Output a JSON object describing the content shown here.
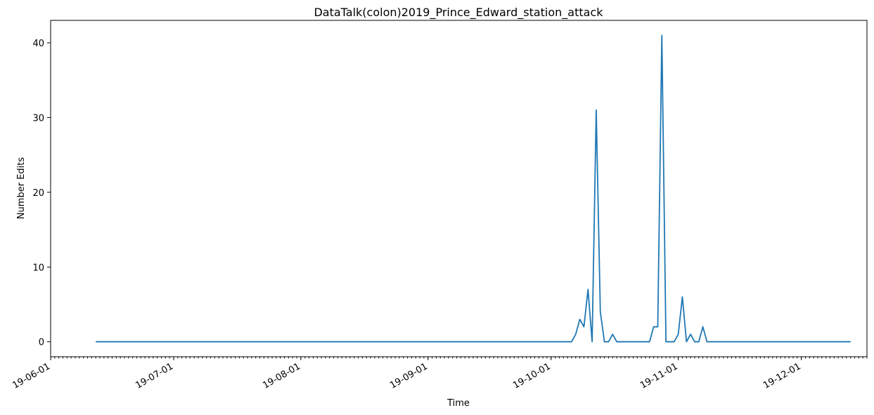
{
  "chart_data": {
    "type": "line",
    "title": "DataTalk(colon)2019_Prince_Edward_station_attack",
    "xlabel": "Time",
    "ylabel": "Number Edits",
    "x_axis_type": "date",
    "xlim": [
      "2019-06-01",
      "2019-12-17"
    ],
    "ylim": [
      -2,
      43
    ],
    "x_ticks": [
      {
        "date": "2019-06-01",
        "label": "19-06-01"
      },
      {
        "date": "2019-07-01",
        "label": "19-07-01"
      },
      {
        "date": "2019-08-01",
        "label": "19-08-01"
      },
      {
        "date": "2019-09-01",
        "label": "19-09-01"
      },
      {
        "date": "2019-10-01",
        "label": "19-10-01"
      },
      {
        "date": "2019-11-01",
        "label": "19-11-01"
      },
      {
        "date": "2019-12-01",
        "label": "19-12-01"
      }
    ],
    "y_ticks": [
      0,
      10,
      20,
      30,
      40
    ],
    "grid": false,
    "line_color": "#1f77b4",
    "series": [
      {
        "points": [
          [
            "2019-06-12",
            0
          ],
          [
            "2019-10-06",
            0
          ],
          [
            "2019-10-07",
            1
          ],
          [
            "2019-10-08",
            3
          ],
          [
            "2019-10-09",
            2
          ],
          [
            "2019-10-10",
            7
          ],
          [
            "2019-10-11",
            0
          ],
          [
            "2019-10-12",
            31
          ],
          [
            "2019-10-13",
            4
          ],
          [
            "2019-10-14",
            0
          ],
          [
            "2019-10-15",
            0
          ],
          [
            "2019-10-16",
            1
          ],
          [
            "2019-10-17",
            0
          ],
          [
            "2019-10-25",
            0
          ],
          [
            "2019-10-26",
            2
          ],
          [
            "2019-10-27",
            2
          ],
          [
            "2019-10-28",
            41
          ],
          [
            "2019-10-29",
            0
          ],
          [
            "2019-10-31",
            0
          ],
          [
            "2019-11-01",
            1
          ],
          [
            "2019-11-02",
            6
          ],
          [
            "2019-11-03",
            0
          ],
          [
            "2019-11-04",
            1
          ],
          [
            "2019-11-05",
            0
          ],
          [
            "2019-11-06",
            0
          ],
          [
            "2019-11-07",
            2
          ],
          [
            "2019-11-08",
            0
          ],
          [
            "2019-12-13",
            0
          ]
        ]
      }
    ]
  }
}
